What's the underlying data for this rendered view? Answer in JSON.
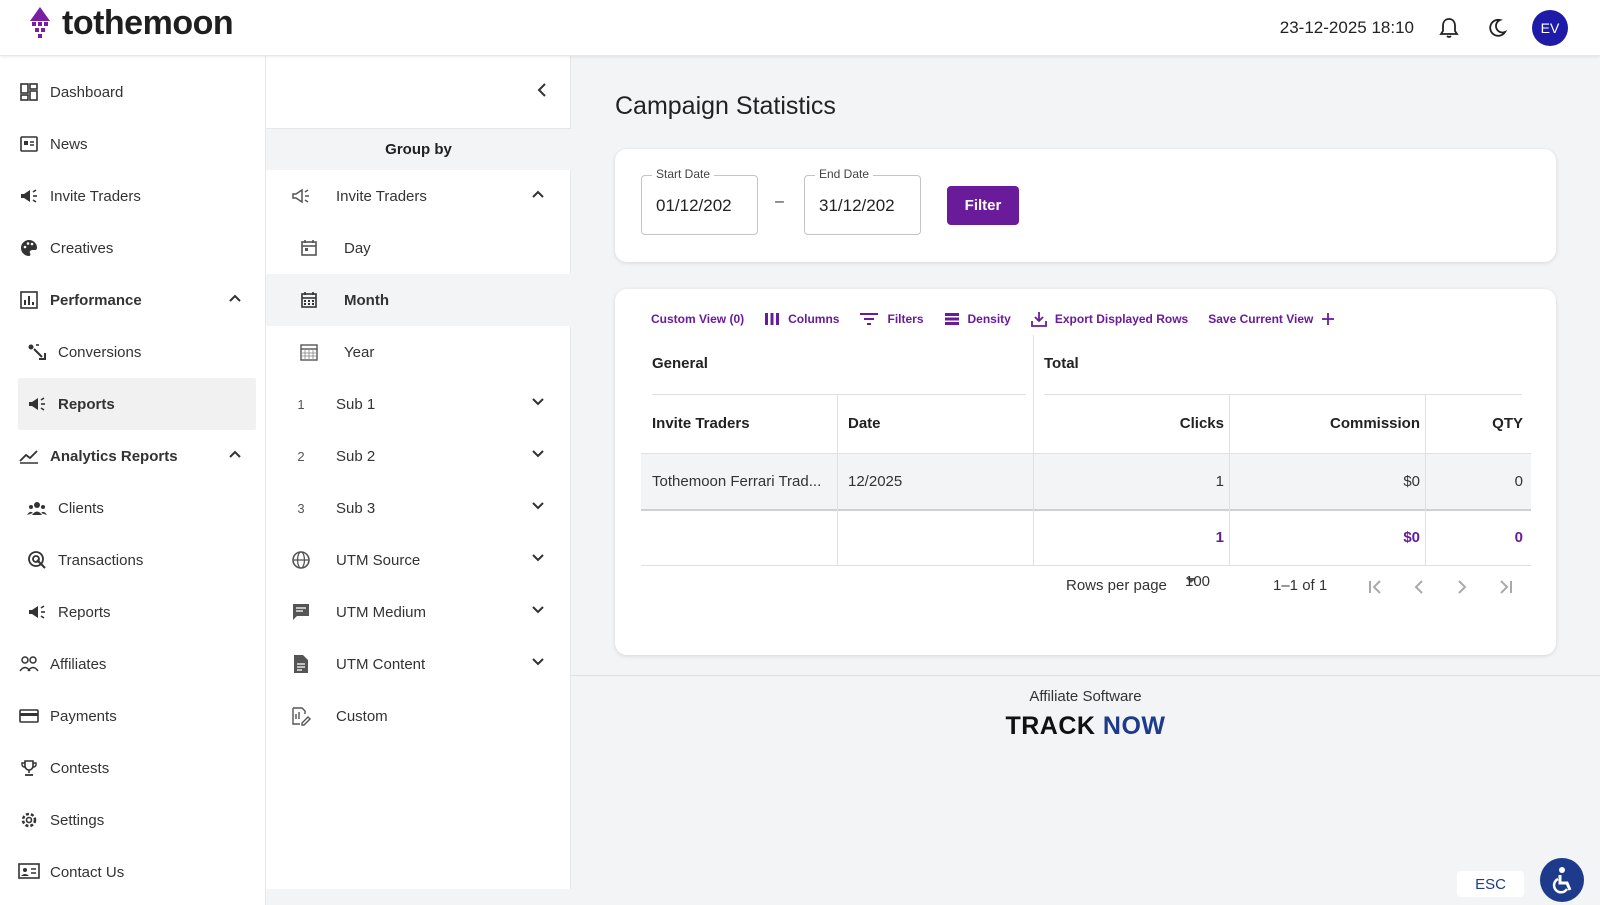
{
  "app": {
    "logo_text": "tothemoon"
  },
  "topbar": {
    "datetime": "23-12-2025 18:10",
    "avatar_initials": "EV"
  },
  "sidebar": {
    "items": [
      {
        "label": "Dashboard",
        "icon": "dashboard-icon"
      },
      {
        "label": "News",
        "icon": "news-icon"
      },
      {
        "label": "Invite Traders",
        "icon": "megaphone-icon"
      },
      {
        "label": "Creatives",
        "icon": "palette-icon"
      },
      {
        "label": "Performance",
        "icon": "bar-chart-icon"
      },
      {
        "label": "Conversions",
        "icon": "conversions-icon"
      },
      {
        "label": "Reports",
        "icon": "megaphone-icon"
      },
      {
        "label": "Analytics Reports",
        "icon": "trend-icon"
      },
      {
        "label": "Clients",
        "icon": "clients-icon"
      },
      {
        "label": "Transactions",
        "icon": "transactions-icon"
      },
      {
        "label": "Reports",
        "icon": "megaphone-icon"
      },
      {
        "label": "Affiliates",
        "icon": "affiliates-icon"
      },
      {
        "label": "Payments",
        "icon": "card-icon"
      },
      {
        "label": "Contests",
        "icon": "trophy-icon"
      },
      {
        "label": "Settings",
        "icon": "gear-icon"
      },
      {
        "label": "Contact Us",
        "icon": "contact-icon"
      }
    ]
  },
  "groupby": {
    "header": "Group by",
    "items": [
      {
        "label": "Invite Traders",
        "icon": "megaphone-icon"
      },
      {
        "label": "Day",
        "icon": "calendar-day-icon"
      },
      {
        "label": "Month",
        "icon": "calendar-month-icon"
      },
      {
        "label": "Year",
        "icon": "calendar-year-icon"
      },
      {
        "label": "Sub 1",
        "index": "1"
      },
      {
        "label": "Sub 2",
        "index": "2"
      },
      {
        "label": "Sub 3",
        "index": "3"
      },
      {
        "label": "UTM Source",
        "icon": "globe-icon"
      },
      {
        "label": "UTM Medium",
        "icon": "chat-icon"
      },
      {
        "label": "UTM Content",
        "icon": "document-icon"
      },
      {
        "label": "Custom",
        "icon": "custom-edit-icon"
      }
    ]
  },
  "main": {
    "title": "Campaign Statistics",
    "start_date": {
      "label": "Start Date",
      "value": "01/12/202"
    },
    "end_date": {
      "label": "End Date",
      "value": "31/12/202"
    },
    "date_separator": "–",
    "filter_label": "Filter",
    "toolbar": {
      "custom_view": "Custom View (0)",
      "columns": "Columns",
      "filters": "Filters",
      "density": "Density",
      "export": "Export Displayed Rows",
      "save_view": "Save Current View"
    },
    "table": {
      "group_headers": [
        "General",
        "Total"
      ],
      "columns": [
        "Invite Traders",
        "Date",
        "Clicks",
        "Commission",
        "QTY"
      ],
      "rows": [
        [
          "Tothemoon Ferrari Trad...",
          "12/2025",
          "1",
          "$0",
          "0"
        ]
      ],
      "totals": [
        "1",
        "$0",
        "0"
      ]
    },
    "pagination": {
      "rows_per_page_label": "Rows per page",
      "rows_per_page": "100",
      "range": "1–1 of 1"
    }
  },
  "footer": {
    "text": "Affiliate Software",
    "logo_track": "TRACK",
    "logo_now": "NOW"
  },
  "widgets": {
    "esc": "ESC"
  },
  "colors": {
    "accent": "#6a1b9a",
    "avatar": "#1e1ba8",
    "brand_blue": "#1e3a8a"
  }
}
